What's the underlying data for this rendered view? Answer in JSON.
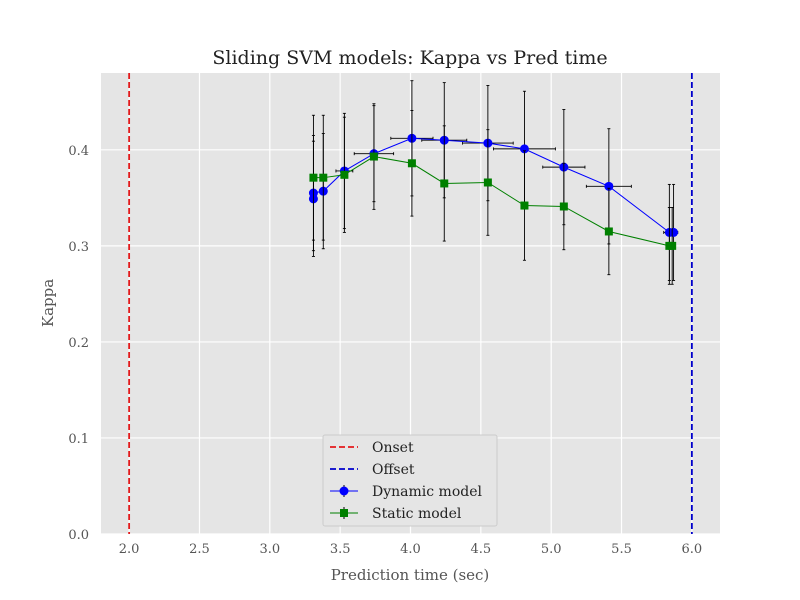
{
  "chart_data": {
    "type": "line",
    "title": "Sliding SVM models: Kappa vs Pred time",
    "xlabel": "Prediction time (sec)",
    "ylabel": "Kappa",
    "xlim": [
      1.8,
      6.2
    ],
    "ylim": [
      0.0,
      0.48
    ],
    "xticks": [
      2.0,
      2.5,
      3.0,
      3.5,
      4.0,
      4.5,
      5.0,
      5.5,
      6.0
    ],
    "xtick_labels": [
      "2.0",
      "2.5",
      "3.0",
      "3.5",
      "4.0",
      "4.5",
      "5.0",
      "5.5",
      "6.0"
    ],
    "yticks": [
      0.0,
      0.1,
      0.2,
      0.3,
      0.4
    ],
    "ytick_labels": [
      "0.0",
      "0.1",
      "0.2",
      "0.3",
      "0.4"
    ],
    "grid": true,
    "legend_position": "bottom-center",
    "vlines": [
      {
        "name": "Onset",
        "x": 2.0,
        "color": "#e31a1c"
      },
      {
        "name": "Offset",
        "x": 6.0,
        "color": "#0000cc"
      }
    ],
    "series": [
      {
        "name": "Dynamic model",
        "color": "#0000ff",
        "marker": "circle",
        "x": [
          3.31,
          3.31,
          3.38,
          3.53,
          3.74,
          4.01,
          4.24,
          4.55,
          4.81,
          5.09,
          5.41,
          5.84,
          5.87
        ],
        "y": [
          0.349,
          0.355,
          0.357,
          0.378,
          0.396,
          0.412,
          0.41,
          0.407,
          0.401,
          0.382,
          0.362,
          0.314,
          0.314
        ],
        "xerr": [
          0.01,
          0.01,
          0.02,
          0.06,
          0.14,
          0.15,
          0.16,
          0.18,
          0.22,
          0.15,
          0.16,
          0.04,
          0.03
        ],
        "yerr": [
          0.06,
          0.06,
          0.06,
          0.06,
          0.05,
          0.06,
          0.06,
          0.06,
          0.06,
          0.06,
          0.06,
          0.05,
          0.05
        ]
      },
      {
        "name": "Static model",
        "color": "#008000",
        "marker": "square",
        "x": [
          3.31,
          3.38,
          3.53,
          3.74,
          4.01,
          4.24,
          4.55,
          4.81,
          5.09,
          5.41,
          5.84,
          5.86
        ],
        "y": [
          0.371,
          0.371,
          0.374,
          0.393,
          0.386,
          0.365,
          0.366,
          0.342,
          0.341,
          0.315,
          0.3,
          0.3
        ],
        "yerr": [
          0.065,
          0.065,
          0.06,
          0.055,
          0.055,
          0.06,
          0.055,
          0.057,
          0.045,
          0.045,
          0.04,
          0.04
        ]
      }
    ]
  }
}
